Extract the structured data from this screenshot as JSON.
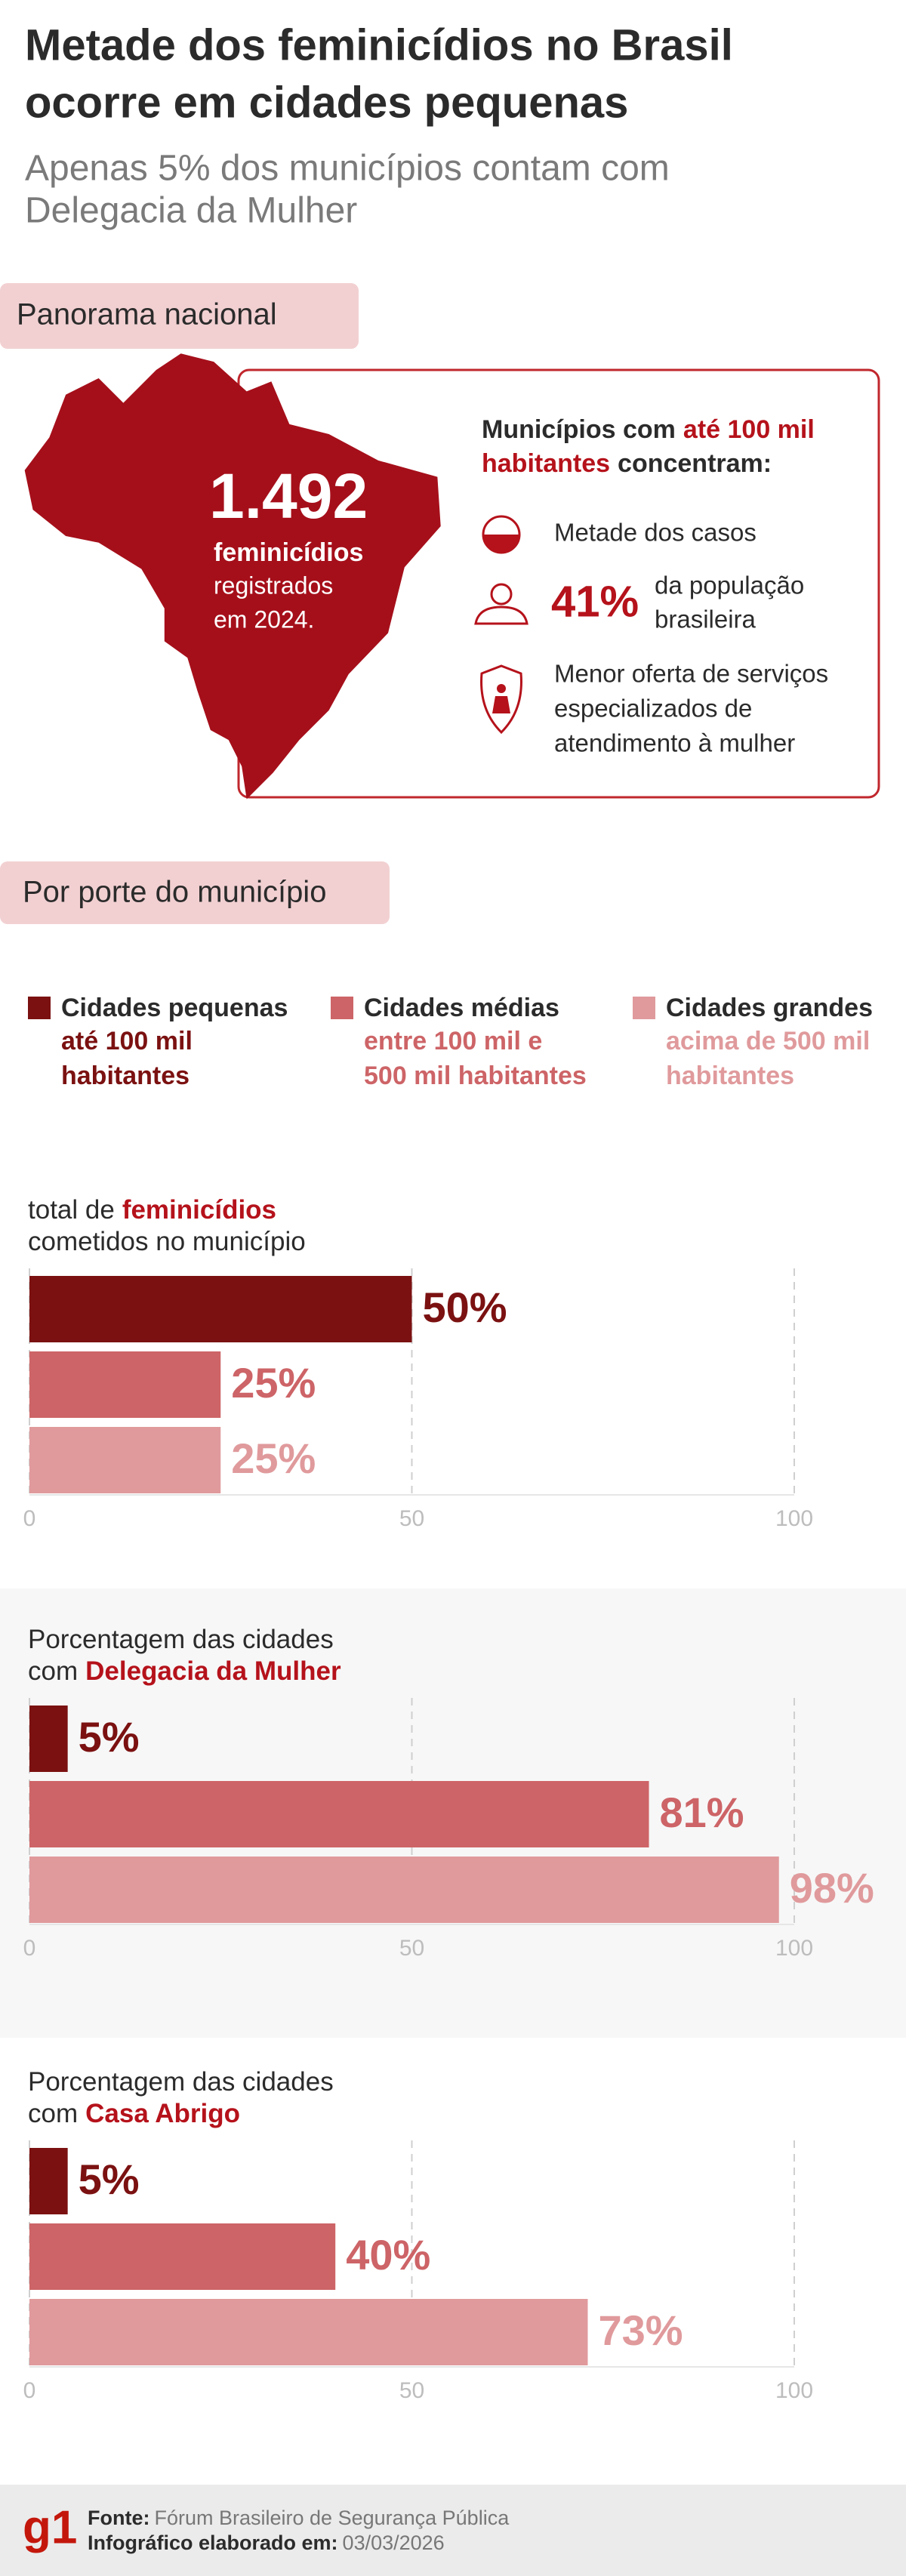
{
  "header": {
    "title_lines": [
      "Metade dos feminicídios no Brasil",
      "ocorre em cidades pequenas"
    ],
    "subtitle_lines": [
      "Apenas 5% dos municípios contam com",
      "Delegacia da Mulher"
    ]
  },
  "panorama": {
    "heading": "Panorama nacional",
    "count": "1.492",
    "count_label": "feminicídios",
    "count_detail_lines": [
      "registrados",
      "em 2024."
    ],
    "box_heading_lines": [
      [
        {
          "text": "Municípios com"
        },
        {
          "text": "até 100 mil",
          "highlight": true
        }
      ],
      [
        {
          "text": "habitantes",
          "highlight": true
        },
        {
          "text": "concentram:"
        }
      ]
    ],
    "items": [
      {
        "lines": [
          "Metade dos casos"
        ]
      },
      {
        "figure": "41%",
        "lines": [
          "da população",
          "brasileira"
        ]
      },
      {
        "lines": [
          "Menor oferta de serviços",
          "especializados de",
          "atendimento à mulher"
        ]
      }
    ]
  },
  "by_size": {
    "heading": "Por porte do município",
    "legend": [
      {
        "name": "Cidades pequenas",
        "detail_lines": [
          "até 100 mil",
          "habitantes"
        ],
        "color": "#7b1111"
      },
      {
        "name": "Cidades médias",
        "detail_lines": [
          "entre 100 mil e",
          "500 mil habitantes"
        ],
        "color": "#cd6467"
      },
      {
        "name": "Cidades grandes",
        "detail_lines": [
          "acima de 500 mil",
          "habitantes"
        ],
        "color": "#e09a9c"
      }
    ]
  },
  "chart_data": [
    {
      "type": "bar",
      "orientation": "horizontal",
      "title_lines": [
        [
          {
            "text": "total de"
          },
          {
            "text": "feminicídios",
            "highlight": true
          }
        ],
        [
          {
            "text": "cometidos no município"
          }
        ]
      ],
      "values": [
        50,
        25,
        25
      ],
      "value_labels": [
        "50%",
        "25%",
        "25%"
      ],
      "colors": [
        "#7b1111",
        "#cd6467",
        "#e09a9c"
      ],
      "xlim": [
        0,
        100
      ],
      "xticks": [
        0,
        50,
        100
      ],
      "grid": true
    },
    {
      "type": "bar",
      "orientation": "horizontal",
      "title_lines": [
        [
          {
            "text": "Porcentagem das cidades"
          }
        ],
        [
          {
            "text": "com"
          },
          {
            "text": "Delegacia da Mulher",
            "highlight": true
          }
        ]
      ],
      "values": [
        5,
        81,
        98
      ],
      "value_labels": [
        "5%",
        "81%",
        "98%"
      ],
      "colors": [
        "#7b1111",
        "#cd6467",
        "#e09a9c"
      ],
      "xlim": [
        0,
        100
      ],
      "xticks": [
        0,
        50,
        100
      ],
      "grid": true,
      "background": "#f7f7f7"
    },
    {
      "type": "bar",
      "orientation": "horizontal",
      "title_lines": [
        [
          {
            "text": "Porcentagem das cidades"
          }
        ],
        [
          {
            "text": "com"
          },
          {
            "text": "Casa Abrigo",
            "highlight": true
          }
        ]
      ],
      "values": [
        5,
        40,
        73
      ],
      "value_labels": [
        "5%",
        "40%",
        "73%"
      ],
      "colors": [
        "#7b1111",
        "#cd6467",
        "#e09a9c"
      ],
      "xlim": [
        0,
        100
      ],
      "xticks": [
        0,
        50,
        100
      ],
      "grid": true
    }
  ],
  "footer": {
    "logo": "g1",
    "source_label": "Fonte:",
    "source": "Fórum Brasileiro de Segurança Pública",
    "date_label": "Infográfico elaborado em:",
    "date": "03/03/2026"
  }
}
